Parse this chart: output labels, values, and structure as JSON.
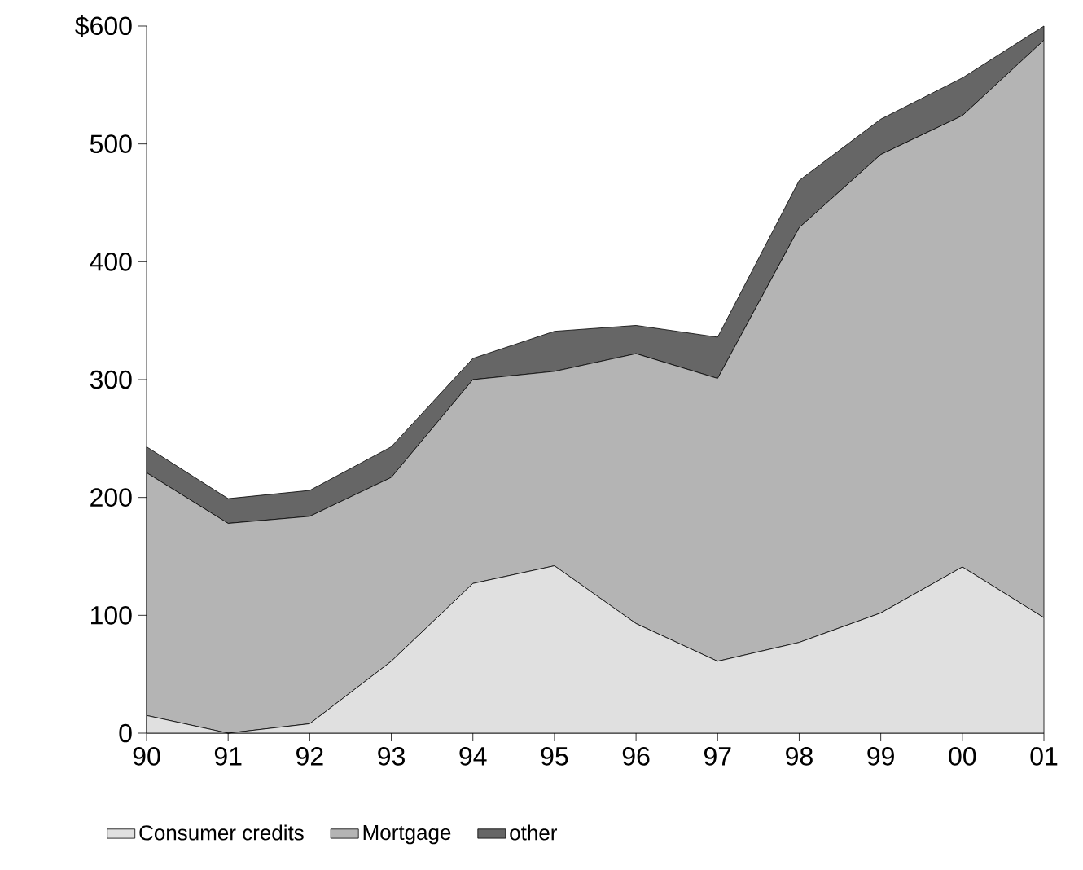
{
  "chart_data": {
    "type": "area",
    "stacked": true,
    "legend": "bottom",
    "categories": [
      "90",
      "91",
      "92",
      "93",
      "94",
      "95",
      "96",
      "97",
      "98",
      "99",
      "00",
      "01"
    ],
    "ylim": [
      0,
      600
    ],
    "yticks": [
      0,
      100,
      200,
      300,
      400,
      500,
      {
        "value": 600,
        "label": "$600"
      }
    ],
    "series": [
      {
        "name": "Consumer credits",
        "color": "#e0e0e0",
        "values": [
          15,
          0,
          8,
          61,
          127,
          142,
          93,
          61,
          77,
          102,
          141,
          98
        ]
      },
      {
        "name": "Mortgage",
        "color": "#b4b4b4",
        "values": [
          206,
          178,
          176,
          156,
          173,
          165,
          229,
          240,
          352,
          389,
          383,
          490
        ]
      },
      {
        "name": "other",
        "color": "#666666",
        "values": [
          22,
          21,
          22,
          26,
          18,
          34,
          24,
          35,
          40,
          30,
          32,
          12
        ]
      }
    ]
  }
}
